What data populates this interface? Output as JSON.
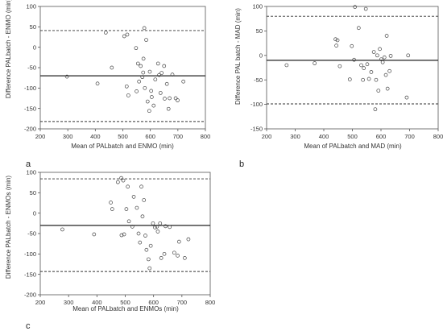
{
  "chart_data": [
    {
      "type": "scatter",
      "panel_label": "a",
      "xlabel": "Mean of PALbatch and ENMO (min)",
      "ylabel": "Difference PALbatch - ENMO (min)",
      "xlim": [
        200,
        800
      ],
      "ylim": [
        -200,
        100
      ],
      "xticks": [
        200,
        300,
        400,
        500,
        600,
        700,
        800
      ],
      "yticks": [
        -200,
        -150,
        -100,
        -50,
        0,
        50,
        100
      ],
      "mean_line": -70,
      "limits_of_agreement": [
        -182,
        41
      ],
      "points": [
        {
          "x": 297,
          "y": -72
        },
        {
          "x": 408,
          "y": -89
        },
        {
          "x": 438,
          "y": 36
        },
        {
          "x": 460,
          "y": -50
        },
        {
          "x": 505,
          "y": 27
        },
        {
          "x": 516,
          "y": 31
        },
        {
          "x": 514,
          "y": -96
        },
        {
          "x": 520,
          "y": -118
        },
        {
          "x": 548,
          "y": -2
        },
        {
          "x": 550,
          "y": -108
        },
        {
          "x": 555,
          "y": -40
        },
        {
          "x": 559,
          "y": -84
        },
        {
          "x": 565,
          "y": -46
        },
        {
          "x": 571,
          "y": -73
        },
        {
          "x": 574,
          "y": -62
        },
        {
          "x": 575,
          "y": -28
        },
        {
          "x": 578,
          "y": 47
        },
        {
          "x": 580,
          "y": -100
        },
        {
          "x": 585,
          "y": 18
        },
        {
          "x": 590,
          "y": -133
        },
        {
          "x": 596,
          "y": -156
        },
        {
          "x": 598,
          "y": -60
        },
        {
          "x": 603,
          "y": -107
        },
        {
          "x": 605,
          "y": -122
        },
        {
          "x": 612,
          "y": -143
        },
        {
          "x": 618,
          "y": -79
        },
        {
          "x": 628,
          "y": -40
        },
        {
          "x": 632,
          "y": -68
        },
        {
          "x": 637,
          "y": -112
        },
        {
          "x": 641,
          "y": -63
        },
        {
          "x": 650,
          "y": -46
        },
        {
          "x": 652,
          "y": -126
        },
        {
          "x": 660,
          "y": -90
        },
        {
          "x": 666,
          "y": -151
        },
        {
          "x": 670,
          "y": -125
        },
        {
          "x": 680,
          "y": -67
        },
        {
          "x": 692,
          "y": -125
        },
        {
          "x": 699,
          "y": -130
        },
        {
          "x": 720,
          "y": -84
        }
      ]
    },
    {
      "type": "scatter",
      "panel_label": "b",
      "xlabel": "Mean of PALbatch and MAD (min)",
      "ylabel": "Difference PAL batch - MAD (min)",
      "xlim": [
        200,
        800
      ],
      "ylim": [
        -150,
        100
      ],
      "xticks": [
        200,
        300,
        400,
        500,
        600,
        700,
        800
      ],
      "yticks": [
        -150,
        -100,
        -50,
        0,
        50,
        100
      ],
      "mean_line": -10,
      "limits_of_agreement": [
        -99,
        80
      ],
      "points": [
        {
          "x": 270,
          "y": -20
        },
        {
          "x": 368,
          "y": -16
        },
        {
          "x": 441,
          "y": 33
        },
        {
          "x": 444,
          "y": 20
        },
        {
          "x": 448,
          "y": 31
        },
        {
          "x": 456,
          "y": -22
        },
        {
          "x": 491,
          "y": -49
        },
        {
          "x": 498,
          "y": 19
        },
        {
          "x": 506,
          "y": -9
        },
        {
          "x": 509,
          "y": 99
        },
        {
          "x": 522,
          "y": 56
        },
        {
          "x": 531,
          "y": -20
        },
        {
          "x": 537,
          "y": -50
        },
        {
          "x": 540,
          "y": -26
        },
        {
          "x": 547,
          "y": 95
        },
        {
          "x": 552,
          "y": -18
        },
        {
          "x": 558,
          "y": -48
        },
        {
          "x": 566,
          "y": -34
        },
        {
          "x": 575,
          "y": 7
        },
        {
          "x": 580,
          "y": -110
        },
        {
          "x": 583,
          "y": -50
        },
        {
          "x": 587,
          "y": 0
        },
        {
          "x": 591,
          "y": -72
        },
        {
          "x": 596,
          "y": 13
        },
        {
          "x": 601,
          "y": -8
        },
        {
          "x": 606,
          "y": -14
        },
        {
          "x": 612,
          "y": -4
        },
        {
          "x": 617,
          "y": -40
        },
        {
          "x": 620,
          "y": 40
        },
        {
          "x": 623,
          "y": -68
        },
        {
          "x": 630,
          "y": -32
        },
        {
          "x": 634,
          "y": -1
        },
        {
          "x": 690,
          "y": -86
        },
        {
          "x": 695,
          "y": 0
        }
      ]
    },
    {
      "type": "scatter",
      "panel_label": "c",
      "xlabel": "Mean of PALbatch and ENMOs (min)",
      "ylabel": "Difference PALbatch - ENMOs (min)",
      "xlim": [
        200,
        800
      ],
      "ylim": [
        -200,
        100
      ],
      "xticks": [
        200,
        300,
        400,
        500,
        600,
        700,
        800
      ],
      "yticks": [
        -200,
        -150,
        -100,
        -50,
        0,
        50,
        100
      ],
      "mean_line": -30,
      "limits_of_agreement": [
        -143,
        84
      ],
      "points": [
        {
          "x": 278,
          "y": -40
        },
        {
          "x": 390,
          "y": -52
        },
        {
          "x": 449,
          "y": 26
        },
        {
          "x": 454,
          "y": 10
        },
        {
          "x": 474,
          "y": 76
        },
        {
          "x": 486,
          "y": 86
        },
        {
          "x": 487,
          "y": -54
        },
        {
          "x": 493,
          "y": 80
        },
        {
          "x": 496,
          "y": -52
        },
        {
          "x": 504,
          "y": 10
        },
        {
          "x": 509,
          "y": 65
        },
        {
          "x": 513,
          "y": -20
        },
        {
          "x": 525,
          "y": -33
        },
        {
          "x": 530,
          "y": 40
        },
        {
          "x": 541,
          "y": 13
        },
        {
          "x": 547,
          "y": -50
        },
        {
          "x": 552,
          "y": -72
        },
        {
          "x": 557,
          "y": 65
        },
        {
          "x": 561,
          "y": -8
        },
        {
          "x": 566,
          "y": 32
        },
        {
          "x": 571,
          "y": -55
        },
        {
          "x": 575,
          "y": -90
        },
        {
          "x": 582,
          "y": -113
        },
        {
          "x": 586,
          "y": -135
        },
        {
          "x": 590,
          "y": -80
        },
        {
          "x": 598,
          "y": -25
        },
        {
          "x": 605,
          "y": -35
        },
        {
          "x": 612,
          "y": -33
        },
        {
          "x": 615,
          "y": -45
        },
        {
          "x": 623,
          "y": -25
        },
        {
          "x": 627,
          "y": -110
        },
        {
          "x": 638,
          "y": -100
        },
        {
          "x": 642,
          "y": -32
        },
        {
          "x": 657,
          "y": -34
        },
        {
          "x": 673,
          "y": -97
        },
        {
          "x": 685,
          "y": -104
        },
        {
          "x": 690,
          "y": -70
        },
        {
          "x": 710,
          "y": -110
        },
        {
          "x": 723,
          "y": -64
        }
      ]
    }
  ]
}
